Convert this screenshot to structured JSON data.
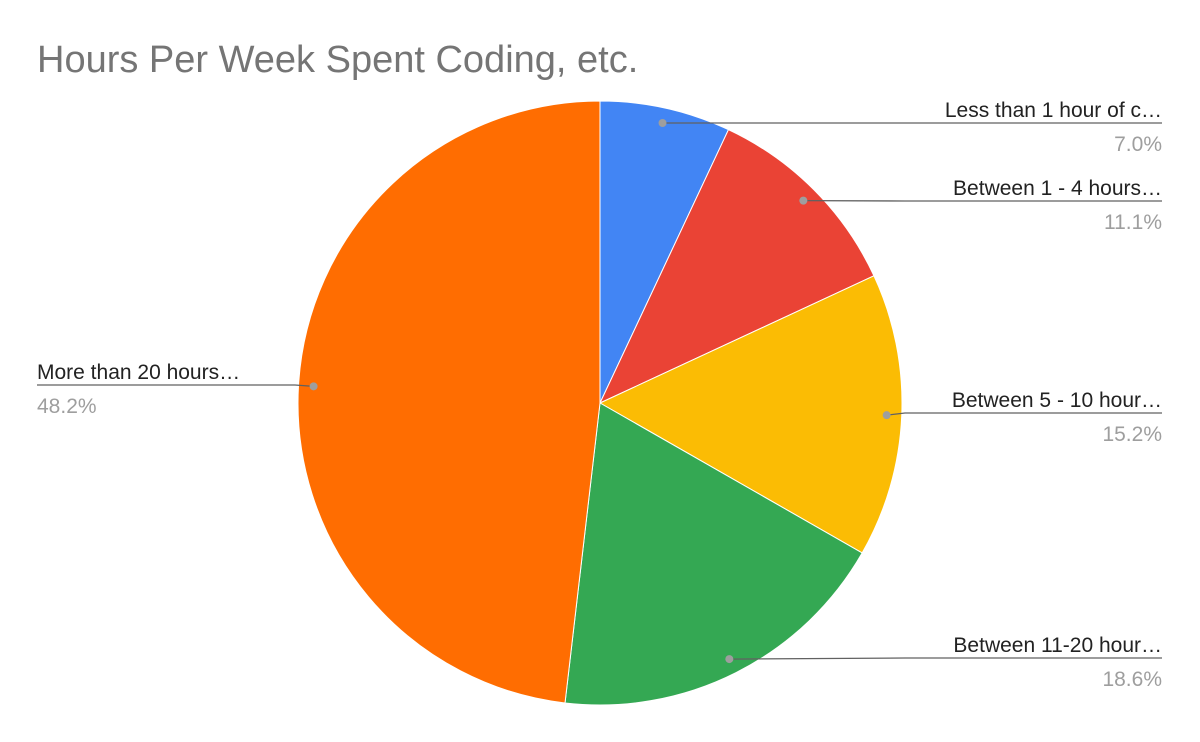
{
  "chart_data": {
    "type": "pie",
    "title": "Hours Per Week Spent Coding, etc.",
    "slices": [
      {
        "label": "Less than 1 hour of c…",
        "value": 7.0,
        "value_label": "7.0%",
        "color": "#4285F4"
      },
      {
        "label": "Between 1 - 4 hours…",
        "value": 11.1,
        "value_label": "11.1%",
        "color": "#EA4335"
      },
      {
        "label": "Between 5 - 10 hour…",
        "value": 15.2,
        "value_label": "15.2%",
        "color": "#FBBC04"
      },
      {
        "label": "Between 11-20 hour…",
        "value": 18.6,
        "value_label": "18.6%",
        "color": "#34A853"
      },
      {
        "label": "More than 20 hours…",
        "value": 48.2,
        "value_label": "48.2%",
        "color": "#FF6D01"
      }
    ],
    "start_direction": "12 o'clock",
    "direction": "clockwise",
    "legend": "none (labels with leader lines)"
  }
}
